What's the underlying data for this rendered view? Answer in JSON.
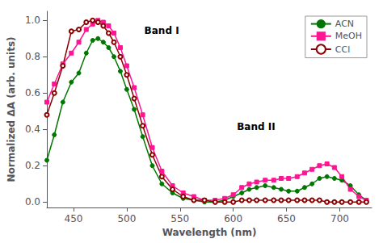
{
  "chart_data": {
    "type": "line",
    "xlabel": "Wavelength (nm)",
    "ylabel": "Normalized ΔA (arb. units)",
    "xlim": [
      425,
      730
    ],
    "ylim": [
      -0.03,
      1.05
    ],
    "xticks": [
      450,
      500,
      550,
      600,
      650,
      700
    ],
    "yticks": [
      {
        "value": 0.0,
        "label": "0.0"
      },
      0.2,
      0.4,
      0.6,
      0.8,
      {
        "value": 1.0,
        "label": "1.0"
      }
    ],
    "grid": false,
    "legend": "upper right",
    "annotations": [
      "Band I",
      "Band II"
    ],
    "x": [
      425,
      432,
      440,
      448,
      455,
      462,
      468,
      473,
      478,
      483,
      488,
      494,
      500,
      507,
      515,
      524,
      533,
      543,
      553,
      563,
      573,
      583,
      592,
      600,
      608,
      615,
      622,
      630,
      638,
      645,
      652,
      660,
      667,
      674,
      681,
      688,
      695,
      702,
      710,
      718,
      725
    ],
    "series": [
      {
        "name": "ACN",
        "color": "#007700",
        "marker": "circle",
        "values": [
          0.23,
          0.37,
          0.55,
          0.66,
          0.71,
          0.82,
          0.89,
          0.9,
          0.88,
          0.85,
          0.8,
          0.72,
          0.62,
          0.51,
          0.36,
          0.2,
          0.1,
          0.05,
          0.02,
          0.01,
          0.0,
          0.0,
          0.01,
          0.03,
          0.05,
          0.07,
          0.08,
          0.09,
          0.08,
          0.07,
          0.06,
          0.06,
          0.08,
          0.1,
          0.13,
          0.14,
          0.13,
          0.12,
          0.09,
          0.04,
          0.01
        ]
      },
      {
        "name": "MeOH",
        "color": "#ff1493",
        "marker": "square",
        "values": [
          0.55,
          0.65,
          0.76,
          0.82,
          0.88,
          0.95,
          0.98,
          1.0,
          0.99,
          0.97,
          0.93,
          0.85,
          0.75,
          0.63,
          0.48,
          0.3,
          0.17,
          0.09,
          0.05,
          0.03,
          0.01,
          0.01,
          0.02,
          0.04,
          0.08,
          0.1,
          0.11,
          0.12,
          0.12,
          0.13,
          0.13,
          0.14,
          0.16,
          0.18,
          0.2,
          0.21,
          0.19,
          0.14,
          0.07,
          0.03,
          0.01
        ]
      },
      {
        "name": "CCl",
        "color": "#8b0000",
        "marker": "circle_open",
        "values": [
          0.48,
          0.6,
          0.75,
          0.94,
          0.95,
          0.99,
          1.0,
          0.99,
          0.97,
          0.93,
          0.88,
          0.8,
          0.7,
          0.57,
          0.42,
          0.26,
          0.14,
          0.07,
          0.03,
          0.01,
          0.01,
          0.0,
          0.0,
          0.0,
          0.01,
          0.01,
          0.01,
          0.01,
          0.01,
          0.01,
          0.01,
          0.01,
          0.01,
          0.01,
          0.01,
          0.0,
          0.0,
          0.0,
          0.0,
          0.0,
          0.0
        ]
      }
    ]
  }
}
